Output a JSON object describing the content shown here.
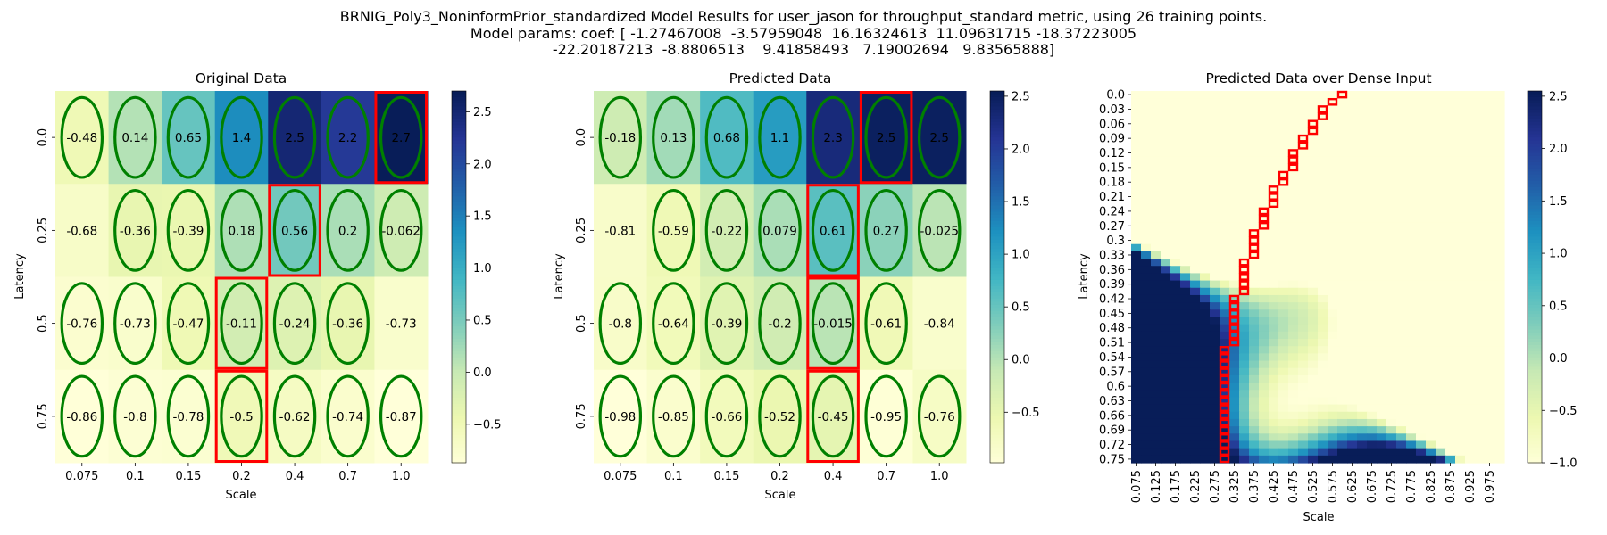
{
  "suptitle": [
    "BRNIG_Poly3_NoninformPrior_standardized Model Results for user_jason for throughput_standard metric, using 26 training points.",
    "Model params: coef: [ -1.27467008  -3.57959048  16.16324613  11.09631715 -18.37223005",
    "-22.20187213  -8.8806513    9.41858493   7.19002694   9.83565888]"
  ],
  "chart_data": [
    {
      "type": "heatmap",
      "title": "Original Data",
      "xlabel": "Scale",
      "ylabel": "Latency",
      "x_categories": [
        "0.075",
        "0.1",
        "0.15",
        "0.2",
        "0.4",
        "0.7",
        "1.0"
      ],
      "y_categories": [
        "0.0",
        "0.25",
        "0.5",
        "0.75"
      ],
      "values": [
        [
          -0.48,
          0.14,
          0.65,
          1.4,
          2.5,
          2.2,
          2.7
        ],
        [
          -0.68,
          -0.36,
          -0.39,
          0.18,
          0.56,
          0.2,
          -0.062
        ],
        [
          -0.76,
          -0.73,
          -0.47,
          -0.11,
          -0.24,
          -0.36,
          -0.73
        ],
        [
          -0.86,
          -0.8,
          -0.78,
          -0.5,
          -0.62,
          -0.74,
          -0.87
        ]
      ],
      "circled": [
        [
          true,
          true,
          true,
          true,
          true,
          true,
          true
        ],
        [
          false,
          true,
          true,
          true,
          true,
          true,
          true
        ],
        [
          true,
          true,
          true,
          true,
          true,
          true,
          false
        ],
        [
          true,
          true,
          true,
          true,
          true,
          true,
          true
        ]
      ],
      "highlighted": [
        [
          0,
          6
        ],
        [
          1,
          4
        ],
        [
          2,
          3
        ],
        [
          3,
          3
        ]
      ],
      "colorbar_range": [
        -0.87,
        2.7
      ],
      "colorbar_ticks": [
        "2.5",
        "2.0",
        "1.5",
        "1.0",
        "0.5",
        "0.0",
        "−0.5"
      ],
      "colormap": "YlGnBu",
      "circle_color": "#008000",
      "highlight_color": "#ff0000"
    },
    {
      "type": "heatmap",
      "title": "Predicted Data",
      "xlabel": "Scale",
      "ylabel": "Latency",
      "x_categories": [
        "0.075",
        "0.1",
        "0.15",
        "0.2",
        "0.4",
        "0.7",
        "1.0"
      ],
      "y_categories": [
        "0.0",
        "0.25",
        "0.5",
        "0.75"
      ],
      "values": [
        [
          -0.18,
          0.13,
          0.68,
          1.1,
          2.3,
          2.5,
          2.5
        ],
        [
          -0.81,
          -0.59,
          -0.22,
          0.079,
          0.61,
          0.27,
          -0.025
        ],
        [
          -0.8,
          -0.64,
          -0.39,
          -0.2,
          -0.015,
          -0.61,
          -0.84
        ],
        [
          -0.98,
          -0.85,
          -0.66,
          -0.52,
          -0.45,
          -0.95,
          -0.76
        ]
      ],
      "circled": [
        [
          true,
          true,
          true,
          true,
          true,
          true,
          true
        ],
        [
          false,
          true,
          true,
          true,
          true,
          true,
          true
        ],
        [
          true,
          true,
          true,
          true,
          true,
          true,
          false
        ],
        [
          true,
          true,
          true,
          true,
          true,
          true,
          true
        ]
      ],
      "highlighted": [
        [
          0,
          5
        ],
        [
          1,
          4
        ],
        [
          2,
          4
        ],
        [
          3,
          4
        ]
      ],
      "colorbar_range": [
        -0.98,
        2.55
      ],
      "colorbar_ticks": [
        "2.5",
        "2.0",
        "1.5",
        "1.0",
        "0.5",
        "0.0",
        "−0.5"
      ],
      "colormap": "YlGnBu",
      "circle_color": "#008000",
      "highlight_color": "#ff0000"
    },
    {
      "type": "heatmap",
      "title": "Predicted Data over Dense Input",
      "xlabel": "Scale",
      "ylabel": "Latency",
      "x_range": [
        0.075,
        1.0
      ],
      "x_step": 0.025,
      "x_tick_labels": [
        "0.075",
        "0.125",
        "0.175",
        "0.225",
        "0.275",
        "0.325",
        "0.375",
        "0.425",
        "0.475",
        "0.525",
        "0.575",
        "0.625",
        "0.675",
        "0.725",
        "0.775",
        "0.825",
        "0.875",
        "0.925",
        "0.975"
      ],
      "y_range": [
        0.0,
        0.75
      ],
      "y_step": 0.015,
      "y_tick_labels": [
        "0.0",
        "0.03",
        "0.06",
        "0.09",
        "0.12",
        "0.15",
        "0.18",
        "0.21",
        "0.24",
        "0.27",
        "0.3",
        "0.33",
        "0.36",
        "0.39",
        "0.42",
        "0.45",
        "0.48",
        "0.51",
        "0.54",
        "0.57",
        "0.6",
        "0.63",
        "0.66",
        "0.69",
        "0.72",
        "0.75"
      ],
      "model_coef": [
        -1.27467008,
        -3.57959048,
        16.16324613,
        11.09631715,
        -18.37223005,
        -22.20187213,
        -8.8806513,
        9.41858493,
        7.19002694,
        9.83565888
      ],
      "best_path": [
        {
          "x_from": 0.6,
          "x_to": 0.625,
          "y_from": 0.0,
          "y_to": 0.015
        },
        {
          "x_from": 0.575,
          "x_to": 0.6,
          "y_from": 0.015,
          "y_to": 0.03
        },
        {
          "x_from": 0.55,
          "x_to": 0.575,
          "y_from": 0.03,
          "y_to": 0.06
        },
        {
          "x_from": 0.525,
          "x_to": 0.55,
          "y_from": 0.06,
          "y_to": 0.09
        },
        {
          "x_from": 0.5,
          "x_to": 0.525,
          "y_from": 0.09,
          "y_to": 0.12
        },
        {
          "x_from": 0.475,
          "x_to": 0.5,
          "y_from": 0.12,
          "y_to": 0.165
        },
        {
          "x_from": 0.45,
          "x_to": 0.475,
          "y_from": 0.165,
          "y_to": 0.195
        },
        {
          "x_from": 0.425,
          "x_to": 0.45,
          "y_from": 0.195,
          "y_to": 0.24
        },
        {
          "x_from": 0.4,
          "x_to": 0.425,
          "y_from": 0.24,
          "y_to": 0.285
        },
        {
          "x_from": 0.375,
          "x_to": 0.4,
          "y_from": 0.285,
          "y_to": 0.345
        },
        {
          "x_from": 0.35,
          "x_to": 0.375,
          "y_from": 0.345,
          "y_to": 0.42
        },
        {
          "x_from": 0.325,
          "x_to": 0.35,
          "y_from": 0.42,
          "y_to": 0.525
        },
        {
          "x_from": 0.3,
          "x_to": 0.325,
          "y_from": 0.525,
          "y_to": 0.765
        }
      ],
      "colorbar_range": [
        -1.0,
        2.55
      ],
      "colorbar_ticks": [
        "2.5",
        "2.0",
        "1.5",
        "1.0",
        "0.5",
        "0.0",
        "−0.5",
        "−1.0"
      ],
      "colormap": "YlGnBu",
      "highlight_color": "#ff0000"
    }
  ]
}
